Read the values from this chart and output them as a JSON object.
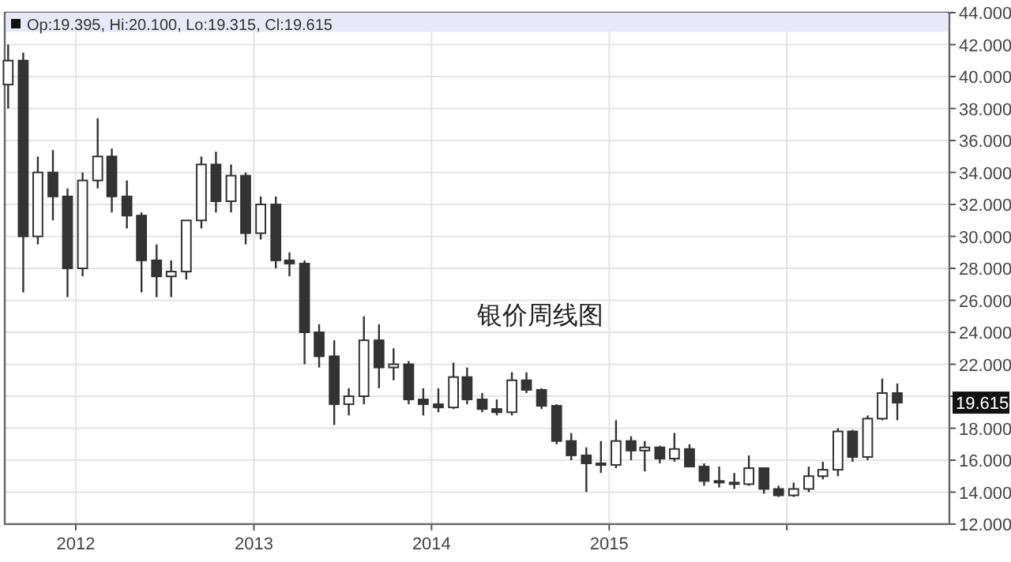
{
  "chart_data": {
    "type": "candlestick",
    "title": "银价周线图",
    "x": [
      "2011-08-15",
      "2011-09-15",
      "2011-10-15",
      "2011-11-15",
      "2011-12-15",
      "2012-01-15",
      "2012-02-15",
      "2012-03-15",
      "2012-04-15",
      "2012-05-15",
      "2012-06-15",
      "2012-07-15",
      "2012-08-15",
      "2012-09-15",
      "2012-10-15",
      "2012-11-15",
      "2012-12-15",
      "2013-01-15",
      "2013-02-15",
      "2013-03-15",
      "2013-04-15",
      "2013-05-15",
      "2013-06-15",
      "2013-07-15",
      "2013-08-15",
      "2013-09-15",
      "2013-10-15",
      "2013-11-15",
      "2013-12-15",
      "2014-01-15",
      "2014-02-15",
      "2014-03-15",
      "2014-04-15",
      "2014-05-15",
      "2014-06-15",
      "2014-07-15",
      "2014-08-15",
      "2014-09-15",
      "2014-10-15",
      "2014-11-15",
      "2014-12-15",
      "2015-01-15",
      "2015-02-15",
      "2015-03-15",
      "2015-04-15",
      "2015-05-15",
      "2015-06-15",
      "2015-07-15",
      "2015-08-15",
      "2015-09-15",
      "2015-10-15",
      "2015-11-15",
      "2015-12-15",
      "2016-01-15",
      "2016-02-15",
      "2016-03-15",
      "2016-04-15",
      "2016-05-15",
      "2016-06-15",
      "2016-07-15",
      "2016-08-15"
    ],
    "ohlc": [
      [
        39.5,
        42.0,
        38.0,
        41.0
      ],
      [
        41.0,
        41.5,
        26.5,
        30.0
      ],
      [
        30.0,
        35.0,
        29.5,
        34.0
      ],
      [
        34.0,
        35.4,
        31.0,
        32.5
      ],
      [
        32.5,
        33.0,
        26.2,
        28.0
      ],
      [
        28.0,
        34.0,
        27.5,
        33.5
      ],
      [
        33.5,
        37.4,
        33.0,
        35.0
      ],
      [
        35.0,
        35.5,
        31.5,
        32.5
      ],
      [
        32.5,
        33.5,
        30.5,
        31.3
      ],
      [
        31.3,
        31.5,
        26.5,
        28.5
      ],
      [
        28.5,
        29.5,
        26.2,
        27.5
      ],
      [
        27.5,
        28.5,
        26.2,
        27.8
      ],
      [
        27.8,
        31.0,
        27.3,
        31.0
      ],
      [
        31.0,
        35.0,
        30.5,
        34.5
      ],
      [
        34.5,
        35.3,
        31.5,
        32.2
      ],
      [
        32.2,
        34.5,
        31.5,
        33.8
      ],
      [
        33.8,
        34.0,
        29.5,
        30.2
      ],
      [
        30.2,
        32.5,
        29.8,
        32.0
      ],
      [
        32.0,
        32.5,
        28.0,
        28.5
      ],
      [
        28.5,
        29.0,
        27.5,
        28.3
      ],
      [
        28.3,
        28.5,
        22.0,
        24.0
      ],
      [
        24.0,
        24.5,
        21.8,
        22.5
      ],
      [
        22.5,
        23.5,
        18.2,
        19.5
      ],
      [
        19.5,
        20.5,
        18.8,
        20.0
      ],
      [
        20.0,
        25.0,
        19.5,
        23.5
      ],
      [
        23.5,
        24.5,
        20.5,
        21.8
      ],
      [
        21.8,
        23.0,
        21.0,
        22.0
      ],
      [
        22.0,
        22.2,
        19.5,
        19.8
      ],
      [
        19.8,
        20.5,
        18.8,
        19.5
      ],
      [
        19.5,
        20.5,
        19.0,
        19.3
      ],
      [
        19.3,
        22.1,
        19.2,
        21.2
      ],
      [
        21.2,
        21.8,
        19.5,
        19.8
      ],
      [
        19.8,
        20.2,
        19.0,
        19.2
      ],
      [
        19.2,
        19.8,
        18.8,
        19.0
      ],
      [
        19.0,
        21.5,
        18.8,
        21.0
      ],
      [
        21.0,
        21.5,
        20.2,
        20.4
      ],
      [
        20.4,
        20.5,
        19.2,
        19.4
      ],
      [
        19.4,
        19.5,
        17.0,
        17.2
      ],
      [
        17.2,
        17.7,
        16.0,
        16.3
      ],
      [
        16.3,
        16.8,
        14.0,
        15.8
      ],
      [
        15.8,
        17.2,
        15.2,
        15.7
      ],
      [
        15.7,
        18.5,
        15.5,
        17.2
      ],
      [
        17.2,
        17.5,
        16.0,
        16.6
      ],
      [
        16.6,
        17.2,
        15.3,
        16.8
      ],
      [
        16.8,
        16.9,
        15.8,
        16.1
      ],
      [
        16.1,
        17.7,
        15.9,
        16.7
      ],
      [
        16.7,
        17.0,
        15.6,
        15.6
      ],
      [
        15.6,
        15.8,
        14.4,
        14.7
      ],
      [
        14.7,
        15.6,
        14.3,
        14.6
      ],
      [
        14.6,
        15.2,
        14.2,
        14.5
      ],
      [
        14.5,
        16.3,
        14.4,
        15.5
      ],
      [
        15.5,
        15.5,
        13.9,
        14.2
      ],
      [
        14.2,
        14.4,
        13.7,
        13.8
      ],
      [
        13.8,
        14.6,
        13.7,
        14.2
      ],
      [
        14.2,
        15.6,
        14.0,
        15.0
      ],
      [
        15.0,
        15.9,
        14.8,
        15.4
      ],
      [
        15.4,
        18.0,
        15.0,
        17.8
      ],
      [
        17.8,
        17.9,
        15.9,
        16.2
      ],
      [
        16.2,
        18.8,
        16.0,
        18.6
      ],
      [
        18.6,
        21.1,
        18.5,
        20.2
      ],
      [
        20.2,
        20.8,
        18.5,
        19.6
      ]
    ],
    "color": "#333333",
    "xlim": [
      "2011-08-08",
      "2016-11-30"
    ],
    "xticks": [
      "2012",
      "2013",
      "2014",
      "2015",
      {
        "value": "2016",
        "label": null
      }
    ],
    "ylim": [
      12,
      44
    ],
    "yticks": [
      {
        "value": 12,
        "label": "12.000"
      },
      {
        "value": 14,
        "label": "14.000"
      },
      {
        "value": 16,
        "label": "16.000"
      },
      {
        "value": 18,
        "label": "18.000"
      },
      {
        "value": 20,
        "label": null
      },
      {
        "value": 22,
        "label": "22.000"
      },
      {
        "value": 24,
        "label": "24.000"
      },
      {
        "value": 26,
        "label": "26.000"
      },
      {
        "value": 28,
        "label": "28.000"
      },
      {
        "value": 30,
        "label": "30.000"
      },
      {
        "value": 32,
        "label": "32.000"
      },
      {
        "value": 34,
        "label": "34.000"
      },
      {
        "value": 36,
        "label": "36.000"
      },
      {
        "value": 38,
        "label": "38.000"
      },
      {
        "value": 40,
        "label": "40.000"
      },
      {
        "value": 42,
        "label": "42.000"
      },
      {
        "value": 44,
        "label": "44.000"
      }
    ],
    "grid": true,
    "bands": [
      {
        "axis": "y",
        "from": 42.8,
        "to": 44,
        "color": "#e8e8f8"
      }
    ],
    "annotations": [
      "Op:19.395, Hi:20.100, Lo:19.315, Cl:19.615",
      "19.615"
    ]
  }
}
